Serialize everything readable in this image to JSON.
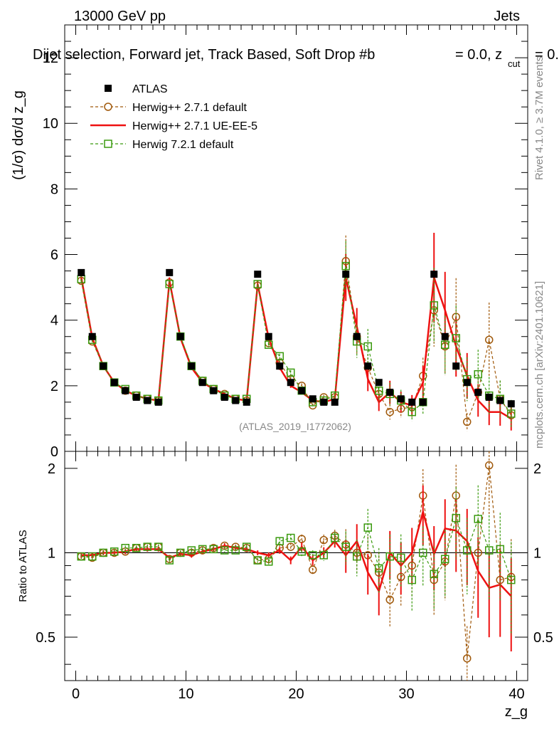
{
  "header": {
    "energy_label": "13000 GeV pp",
    "category_label": "Jets",
    "title": "Dijet selection, Forward jet, Track Based, Soft Drop #b",
    "title_suffix": "= 0.0, z",
    "title_sub": "cut",
    "title_tail": "= 0.",
    "watermark": "(ATLAS_2019_I1772062)",
    "side_right_top": "Rivet 4.1.0, ≥ 3.7M events",
    "side_right_bottom": "mcplots.cern.ch [arXiv:2401.10621]"
  },
  "chart_data": {
    "type": "line",
    "title": "Dijet selection, Forward jet, Track Based, Soft Drop #beta = 0.0, z_cut = 0.",
    "xlabel": "z_g",
    "ylabel_main": "(1/σ) dσ/d z_g",
    "ylabel_ratio": "Ratio to ATLAS",
    "xlim": [
      -1,
      41
    ],
    "ylim_main": [
      0,
      13
    ],
    "ylim_ratio": [
      0.35,
      2.3
    ],
    "x_ticks": [
      "0",
      "10",
      "20",
      "30",
      "40"
    ],
    "y_ticks_main": [
      "0",
      "2",
      "4",
      "6",
      "8",
      "10",
      "12"
    ],
    "y_ticks_ratio": [
      "0.5",
      "1",
      "2"
    ],
    "x": [
      0.5,
      1.5,
      2.5,
      3.5,
      4.5,
      5.5,
      6.5,
      7.5,
      8.5,
      9.5,
      10.5,
      11.5,
      12.5,
      13.5,
      14.5,
      15.5,
      16.5,
      17.5,
      18.5,
      19.5,
      20.5,
      21.5,
      22.5,
      23.5,
      24.5,
      25.5,
      26.5,
      27.5,
      28.5,
      29.5,
      30.5,
      31.5,
      32.5,
      33.5,
      34.5,
      35.5,
      36.5,
      37.5,
      38.5,
      39.5
    ],
    "series": [
      {
        "name": "ATLAS",
        "style": "data",
        "color": "#000000",
        "values": [
          5.45,
          3.5,
          2.6,
          2.1,
          1.85,
          1.65,
          1.55,
          1.5,
          5.45,
          3.5,
          2.6,
          2.1,
          1.85,
          1.65,
          1.55,
          1.5,
          5.4,
          3.5,
          2.6,
          2.1,
          1.85,
          1.6,
          1.5,
          1.5,
          5.4,
          3.5,
          2.6,
          2.1,
          1.8,
          1.6,
          1.5,
          1.5,
          5.4,
          3.5,
          2.6,
          2.1,
          1.8,
          1.65,
          1.55,
          1.45
        ],
        "ratio": [
          1,
          1,
          1,
          1,
          1,
          1,
          1,
          1,
          1,
          1,
          1,
          1,
          1,
          1,
          1,
          1,
          1,
          1,
          1,
          1,
          1,
          1,
          1,
          1,
          1,
          1,
          1,
          1,
          1,
          1,
          1,
          1,
          1,
          1,
          1,
          1,
          1,
          1,
          1,
          1
        ]
      },
      {
        "name": "Herwig++ 2.7.1 default",
        "style": "dashed-circle",
        "color": "#a0590b",
        "values": [
          5.2,
          3.35,
          2.6,
          2.1,
          1.85,
          1.7,
          1.6,
          1.55,
          5.15,
          3.5,
          2.6,
          2.15,
          1.9,
          1.75,
          1.6,
          1.55,
          5.05,
          3.3,
          2.7,
          2.2,
          2.0,
          1.4,
          1.65,
          1.65,
          5.8,
          3.5,
          2.55,
          1.75,
          1.2,
          1.3,
          1.35,
          2.3,
          4.3,
          3.2,
          4.1,
          0.9,
          1.8,
          3.4,
          1.6,
          1.1
        ],
        "ratio": [
          0.97,
          0.96,
          1.0,
          1.0,
          1.01,
          1.04,
          1.05,
          1.05,
          0.95,
          1.0,
          1.0,
          1.02,
          1.04,
          1.06,
          1.05,
          1.04,
          0.94,
          0.95,
          1.04,
          1.05,
          1.12,
          0.87,
          1.11,
          1.15,
          1.07,
          1.0,
          0.98,
          0.85,
          0.68,
          0.82,
          0.9,
          1.6,
          0.8,
          0.93,
          1.6,
          0.42,
          1.0,
          2.05,
          0.8,
          0.82
        ]
      },
      {
        "name": "Herwig++ 2.7.1 UE-EE-5",
        "style": "solid",
        "color": "#ee1111",
        "values": [
          5.3,
          3.45,
          2.6,
          2.1,
          1.85,
          1.7,
          1.6,
          1.55,
          5.2,
          3.45,
          2.55,
          2.1,
          1.9,
          1.75,
          1.6,
          1.55,
          5.1,
          3.45,
          2.55,
          2.0,
          1.8,
          1.55,
          1.5,
          1.6,
          5.3,
          3.8,
          2.2,
          1.5,
          1.8,
          1.5,
          1.4,
          2.1,
          5.3,
          4.3,
          3.2,
          2.3,
          1.55,
          1.2,
          1.2,
          1.0
        ],
        "ratio": [
          0.98,
          0.98,
          1.0,
          1.0,
          1.01,
          1.03,
          1.03,
          1.03,
          0.96,
          0.99,
          0.98,
          1.01,
          1.03,
          1.06,
          1.04,
          1.03,
          1.0,
          0.98,
          1.02,
          0.94,
          1.05,
          0.94,
          1.0,
          1.1,
          0.98,
          1.1,
          0.85,
          0.73,
          1.0,
          0.9,
          1.0,
          1.4,
          0.99,
          1.22,
          1.2,
          1.1,
          0.86,
          0.75,
          0.77,
          0.7
        ]
      },
      {
        "name": "Herwig 7.2.1 default",
        "style": "dashed-square",
        "color": "#3a9a0e",
        "values": [
          5.25,
          3.4,
          2.6,
          2.1,
          1.9,
          1.7,
          1.6,
          1.55,
          5.1,
          3.5,
          2.6,
          2.15,
          1.9,
          1.7,
          1.6,
          1.6,
          5.1,
          3.25,
          2.9,
          2.4,
          1.85,
          1.5,
          1.55,
          1.7,
          5.65,
          3.35,
          3.2,
          1.85,
          1.75,
          1.55,
          1.2,
          1.5,
          4.45,
          3.25,
          3.45,
          2.2,
          2.35,
          1.7,
          1.6,
          1.15
        ],
        "ratio": [
          0.97,
          0.97,
          1.0,
          1.01,
          1.04,
          1.04,
          1.05,
          1.05,
          0.94,
          1.0,
          1.02,
          1.03,
          1.03,
          1.02,
          1.02,
          1.05,
          0.94,
          0.93,
          1.1,
          1.13,
          1.01,
          0.98,
          0.98,
          1.13,
          1.05,
          0.97,
          1.23,
          0.88,
          0.97,
          0.96,
          0.8,
          1.0,
          0.84,
          0.95,
          1.33,
          1.02,
          1.32,
          1.02,
          1.03,
          0.8
        ]
      }
    ],
    "legend": [
      "ATLAS",
      "Herwig++ 2.7.1 default",
      "Herwig++ 2.7.1 UE-EE-5",
      "Herwig 7.2.1 default"
    ],
    "legend_position": "top-left"
  }
}
